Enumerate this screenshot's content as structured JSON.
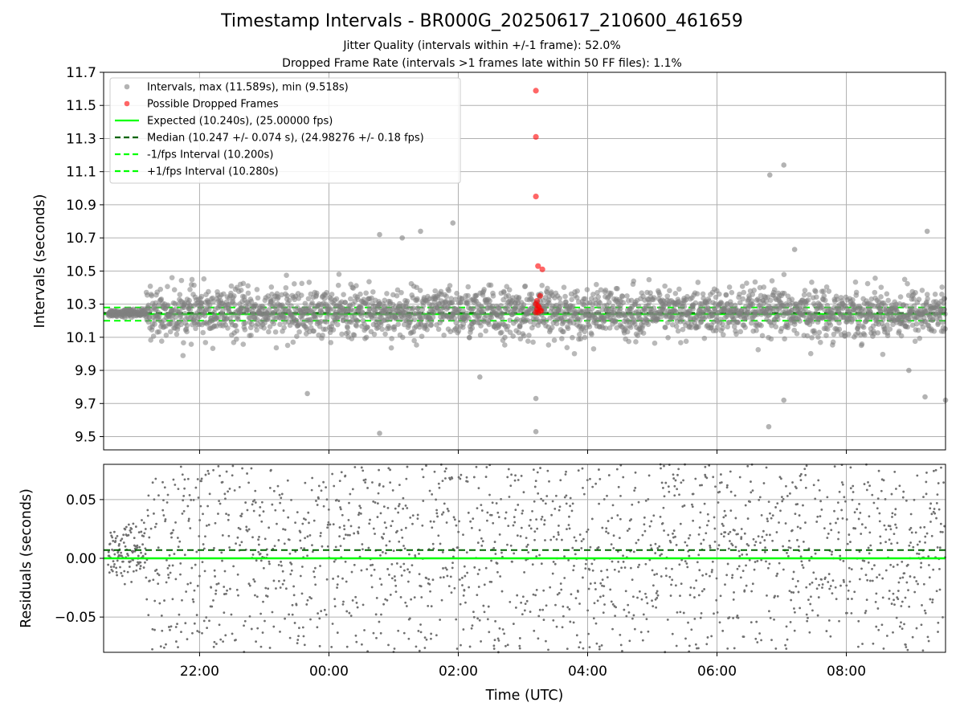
{
  "header": {
    "title": "Timestamp Intervals - BR000G_20250617_210600_461659",
    "subtitle1": "Jitter Quality (intervals within +/-1 frame): 52.0%",
    "subtitle2": "Dropped Frame Rate (intervals >1 frames late within 50 FF files): 1.1%"
  },
  "colors": {
    "intervals": "#808080",
    "dropped": "#ff0000",
    "expected": "#00ff00",
    "median": "#006400",
    "fps_bounds": "#00ff00",
    "grid": "#b0b0b0"
  },
  "chart_data": [
    {
      "type": "scatter",
      "ylabel": "Intervals (seconds)",
      "ylim": [
        9.42,
        11.7
      ],
      "xlim": [
        "20:31",
        "09:32"
      ],
      "yticks": [
        "9.5",
        "9.7",
        "9.9",
        "10.1",
        "10.3",
        "10.5",
        "10.7",
        "10.9",
        "11.1",
        "11.3",
        "11.5",
        "11.7"
      ],
      "grid": true,
      "legend_position": "upper-left",
      "legend": [
        "Intervals, max (11.589s), min (9.518s)",
        "Possible Dropped Frames",
        "Expected (10.240s), (25.00000 fps)",
        "Median (10.247 +/- 0.074 s), (24.98276 +/- 0.18 fps)",
        "-1/fps Interval (10.200s)",
        "+1/fps Interval (10.280s)"
      ],
      "reference_lines": {
        "expected": 10.24,
        "median": 10.247,
        "minus_one_frame": 10.2,
        "plus_one_frame": 10.28
      },
      "series": [
        {
          "name": "Intervals, max (11.589s), min (9.518s)",
          "x_range": [
            "20:35",
            "09:32"
          ],
          "center": 10.247,
          "spread": 0.074,
          "max": 11.589,
          "min": 9.518,
          "outliers": [
            {
              "x": "03:12",
              "y": 9.53
            },
            {
              "x": "00:47",
              "y": 9.52
            },
            {
              "x": "06:48",
              "y": 9.56
            },
            {
              "x": "03:12",
              "y": 9.73
            },
            {
              "x": "23:40",
              "y": 9.76
            },
            {
              "x": "07:02",
              "y": 9.72
            },
            {
              "x": "09:13",
              "y": 9.74
            },
            {
              "x": "09:32",
              "y": 9.72
            },
            {
              "x": "02:20",
              "y": 9.86
            },
            {
              "x": "08:58",
              "y": 9.9
            },
            {
              "x": "06:49",
              "y": 11.08
            },
            {
              "x": "07:02",
              "y": 11.14
            },
            {
              "x": "01:55",
              "y": 10.79
            },
            {
              "x": "09:15",
              "y": 10.74
            },
            {
              "x": "01:25",
              "y": 10.74
            },
            {
              "x": "00:47",
              "y": 10.72
            },
            {
              "x": "01:08",
              "y": 10.7
            },
            {
              "x": "07:12",
              "y": 10.63
            }
          ]
        },
        {
          "name": "Possible Dropped Frames",
          "points": [
            {
              "x": "03:12",
              "y": 11.589
            },
            {
              "x": "03:12",
              "y": 11.31
            },
            {
              "x": "03:12",
              "y": 10.95
            },
            {
              "x": "03:14",
              "y": 10.53
            },
            {
              "x": "03:18",
              "y": 10.51
            },
            {
              "x": "03:16",
              "y": 10.35
            },
            {
              "x": "03:13",
              "y": 10.32
            },
            {
              "x": "03:12",
              "y": 10.3
            },
            {
              "x": "03:14",
              "y": 10.29
            },
            {
              "x": "03:15",
              "y": 10.28
            },
            {
              "x": "03:13",
              "y": 10.27
            },
            {
              "x": "03:16",
              "y": 10.26
            },
            {
              "x": "03:12",
              "y": 10.25
            },
            {
              "x": "03:14",
              "y": 10.25
            },
            {
              "x": "03:17",
              "y": 10.26
            }
          ]
        }
      ]
    },
    {
      "type": "scatter",
      "xlabel": "Time (UTC)",
      "ylabel": "Residuals (seconds)",
      "ylim": [
        -0.08,
        0.08
      ],
      "yticks": [
        "−0.05",
        "0.00",
        "0.05"
      ],
      "xticks": [
        "22:00",
        "00:00",
        "02:00",
        "04:00",
        "06:00",
        "08:00"
      ],
      "grid": true,
      "reference_lines": {
        "expected": 0.0,
        "median": 0.007
      },
      "series": [
        {
          "name": "Residuals",
          "x_range": [
            "20:35",
            "09:32"
          ],
          "center": 0.007,
          "spread": 0.074
        }
      ]
    }
  ]
}
